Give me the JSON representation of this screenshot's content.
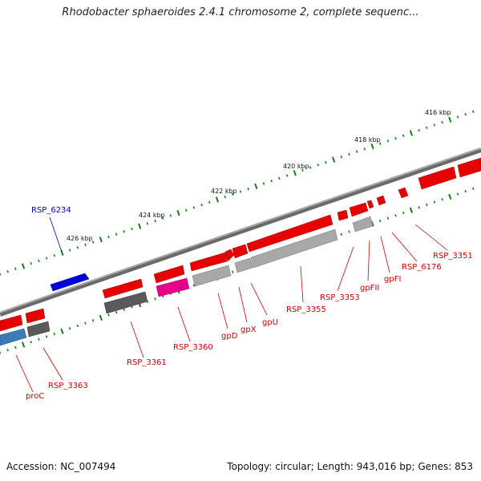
{
  "title": "Rhodobacter sphaeroides 2.4.1 chromosome 2, complete sequenc...",
  "footer": {
    "accession": "Accession: NC_007494",
    "summary": "Topology: circular; Length: 943,016 bp; Genes: 853"
  },
  "colors": {
    "backbone": "#808080",
    "tick": "#1a7a1a",
    "gene_red": "#e60000",
    "gene_gray": "#a8a8a8",
    "gene_dark": "#5a5a5a",
    "gene_magenta": "#e6008a",
    "gene_blue": "#0000dd",
    "gene_steel": "#3d7ab8",
    "label_red": "#cc0000",
    "label_blue": "#0000cc"
  },
  "ticks": [
    "416 kbp",
    "418 kbp",
    "420 kbp",
    "422 kbp",
    "424 kbp",
    "426 kbp"
  ],
  "gene_labels": [
    "RSP_6234",
    "proC",
    "RSP_3363",
    "RSP_3361",
    "RSP_3360",
    "gpD",
    "gpX",
    "gpU",
    "RSP_3355",
    "RSP_3353",
    "gpFII",
    "gpFI",
    "RSP_6176",
    "RSP_3351"
  ]
}
